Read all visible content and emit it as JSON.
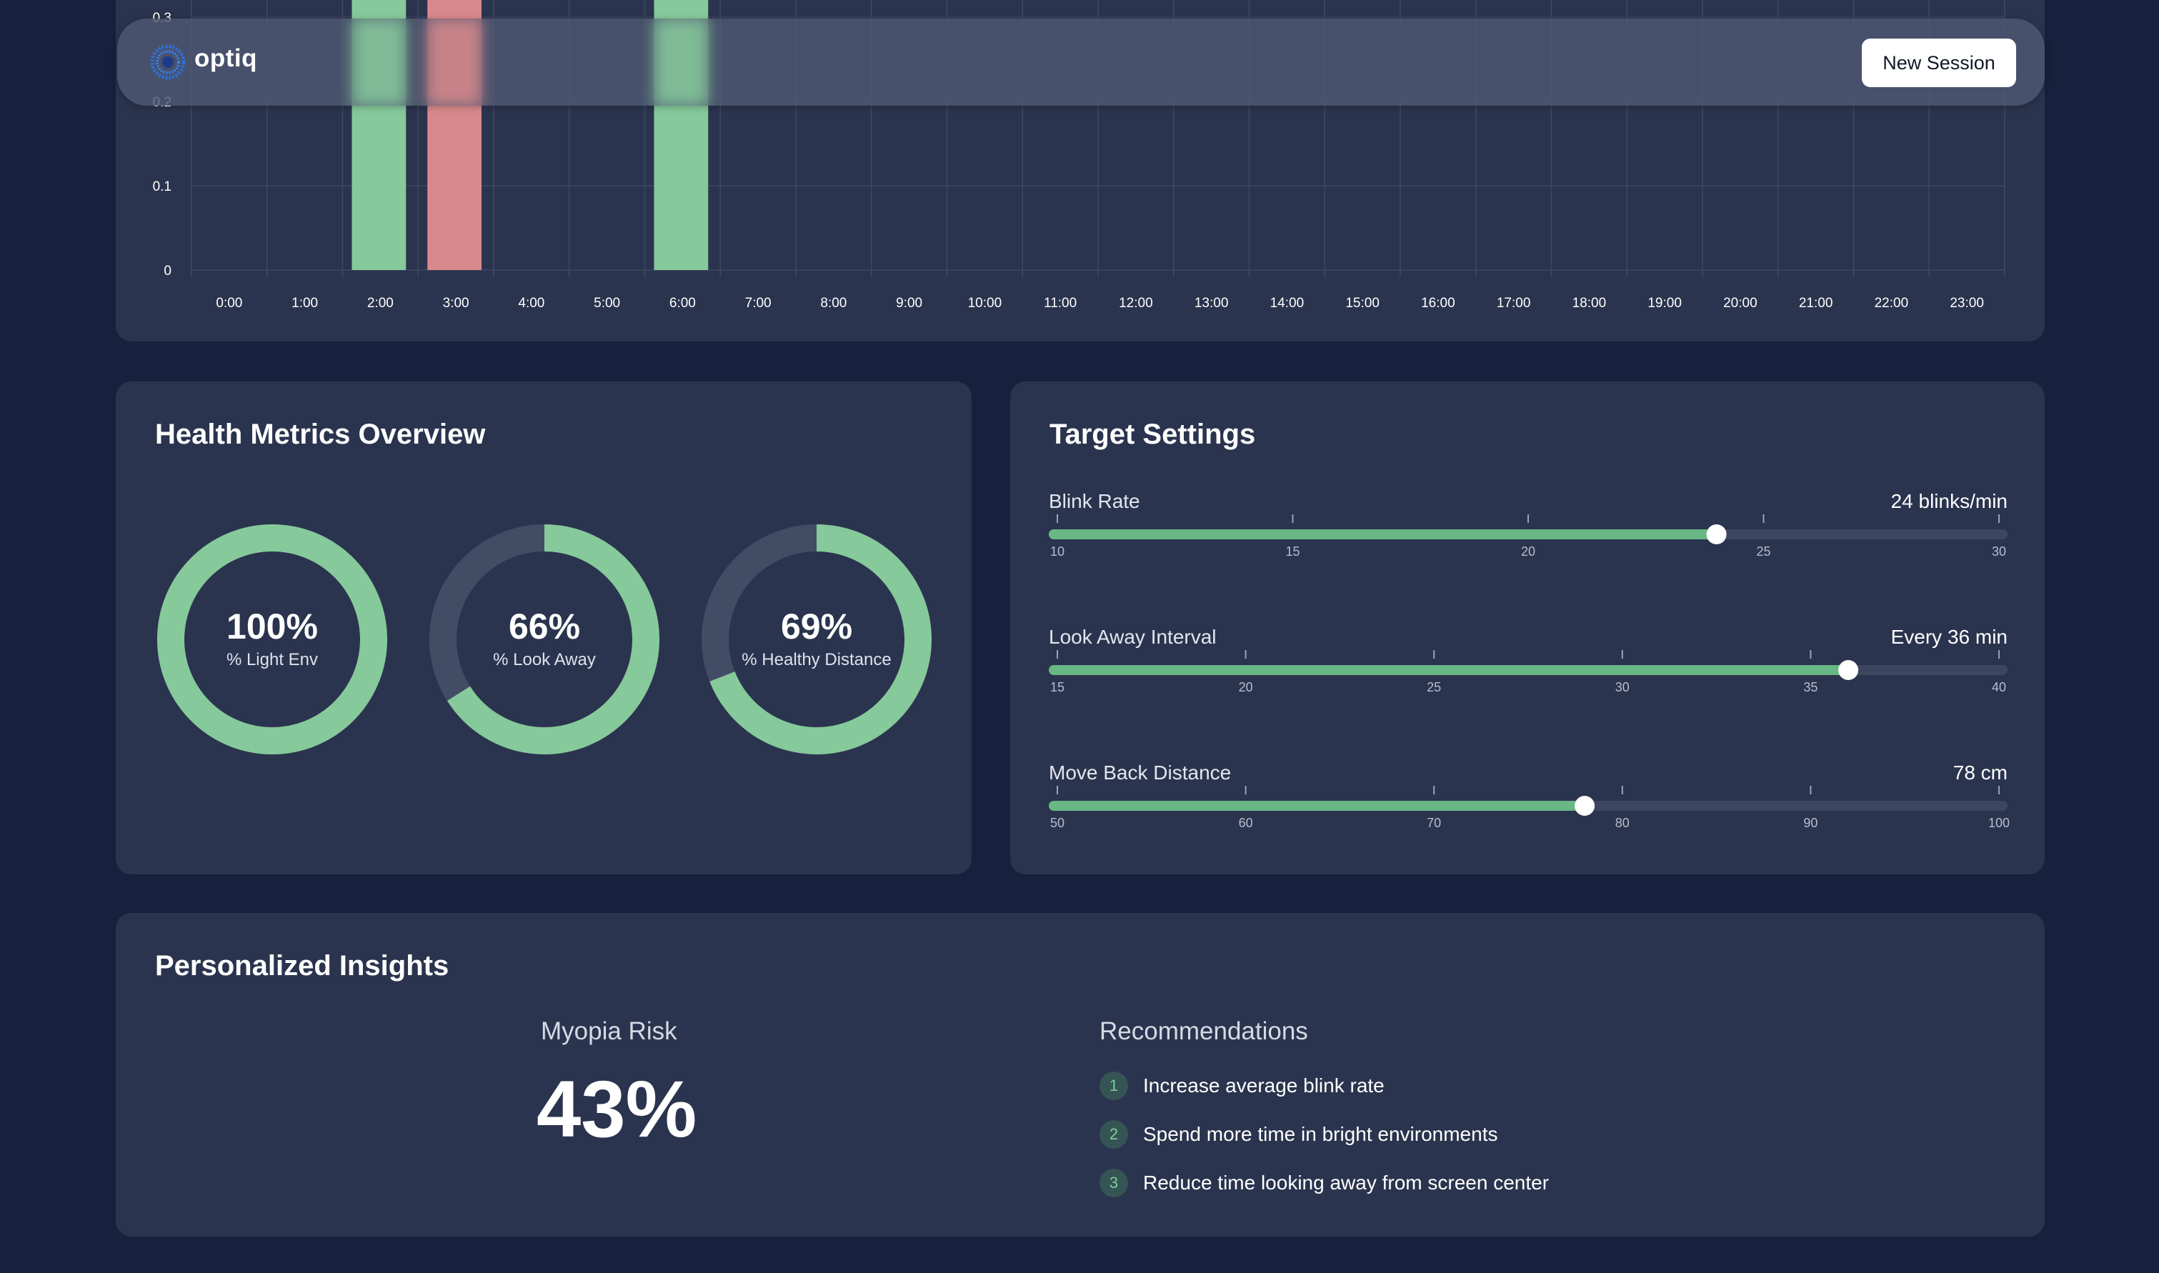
{
  "app": {
    "name": "optiq",
    "new_session_label": "New Session",
    "brand_color": "#3b82f6"
  },
  "chart_data": {
    "type": "bar",
    "categories": [
      "0:00",
      "1:00",
      "2:00",
      "3:00",
      "4:00",
      "5:00",
      "6:00",
      "7:00",
      "8:00",
      "9:00",
      "10:00",
      "11:00",
      "12:00",
      "13:00",
      "14:00",
      "15:00",
      "16:00",
      "17:00",
      "18:00",
      "19:00",
      "20:00",
      "21:00",
      "22:00",
      "23:00"
    ],
    "values": [
      0,
      0,
      0.33,
      0.33,
      0,
      0,
      0.33,
      0,
      0,
      0,
      0,
      0,
      0,
      0,
      0,
      0,
      0,
      0,
      0,
      0,
      0,
      0,
      0,
      0
    ],
    "bar_colors": [
      "#86c99b",
      "#86c99b",
      "#86c99b",
      "#d9898c",
      "#86c99b",
      "#86c99b",
      "#86c99b",
      "#86c99b",
      "#86c99b",
      "#86c99b",
      "#86c99b",
      "#86c99b",
      "#86c99b",
      "#86c99b",
      "#86c99b",
      "#86c99b",
      "#86c99b",
      "#86c99b",
      "#86c99b",
      "#86c99b",
      "#86c99b",
      "#86c99b",
      "#86c99b",
      "#86c99b"
    ],
    "y_ticks": [
      "0",
      "0.1",
      "0.2",
      "0.3"
    ],
    "ylim": [
      0,
      0.3
    ],
    "grid": true,
    "title": "",
    "xlabel": "",
    "ylabel": ""
  },
  "health": {
    "title": "Health Metrics Overview",
    "metrics": [
      {
        "value": "100%",
        "label": "% Light Env",
        "percent": 100
      },
      {
        "value": "66%",
        "label": "% Look Away",
        "percent": 66
      },
      {
        "value": "69%",
        "label": "% Healthy Distance",
        "percent": 69
      }
    ]
  },
  "targets": {
    "title": "Target Settings",
    "sliders": [
      {
        "label": "Blink Rate",
        "value_text": "24 blinks/min",
        "value": 24,
        "min": 10,
        "max": 30,
        "ticks": [
          "10",
          "15",
          "20",
          "25",
          "30"
        ]
      },
      {
        "label": "Look Away Interval",
        "value_text": "Every 36 min",
        "value": 36,
        "min": 15,
        "max": 40,
        "ticks": [
          "15",
          "20",
          "25",
          "30",
          "35",
          "40"
        ]
      },
      {
        "label": "Move Back Distance",
        "value_text": "78 cm",
        "value": 78,
        "min": 50,
        "max": 100,
        "ticks": [
          "50",
          "60",
          "70",
          "80",
          "90",
          "100"
        ]
      }
    ]
  },
  "insights": {
    "title": "Personalized Insights",
    "risk_label": "Myopia Risk",
    "risk_value": "43%",
    "recommendations_title": "Recommendations",
    "recommendations": [
      {
        "num": "1",
        "text": "Increase average blink rate"
      },
      {
        "num": "2",
        "text": "Spend more time in bright environments"
      },
      {
        "num": "3",
        "text": "Reduce time looking away from screen center"
      }
    ]
  }
}
